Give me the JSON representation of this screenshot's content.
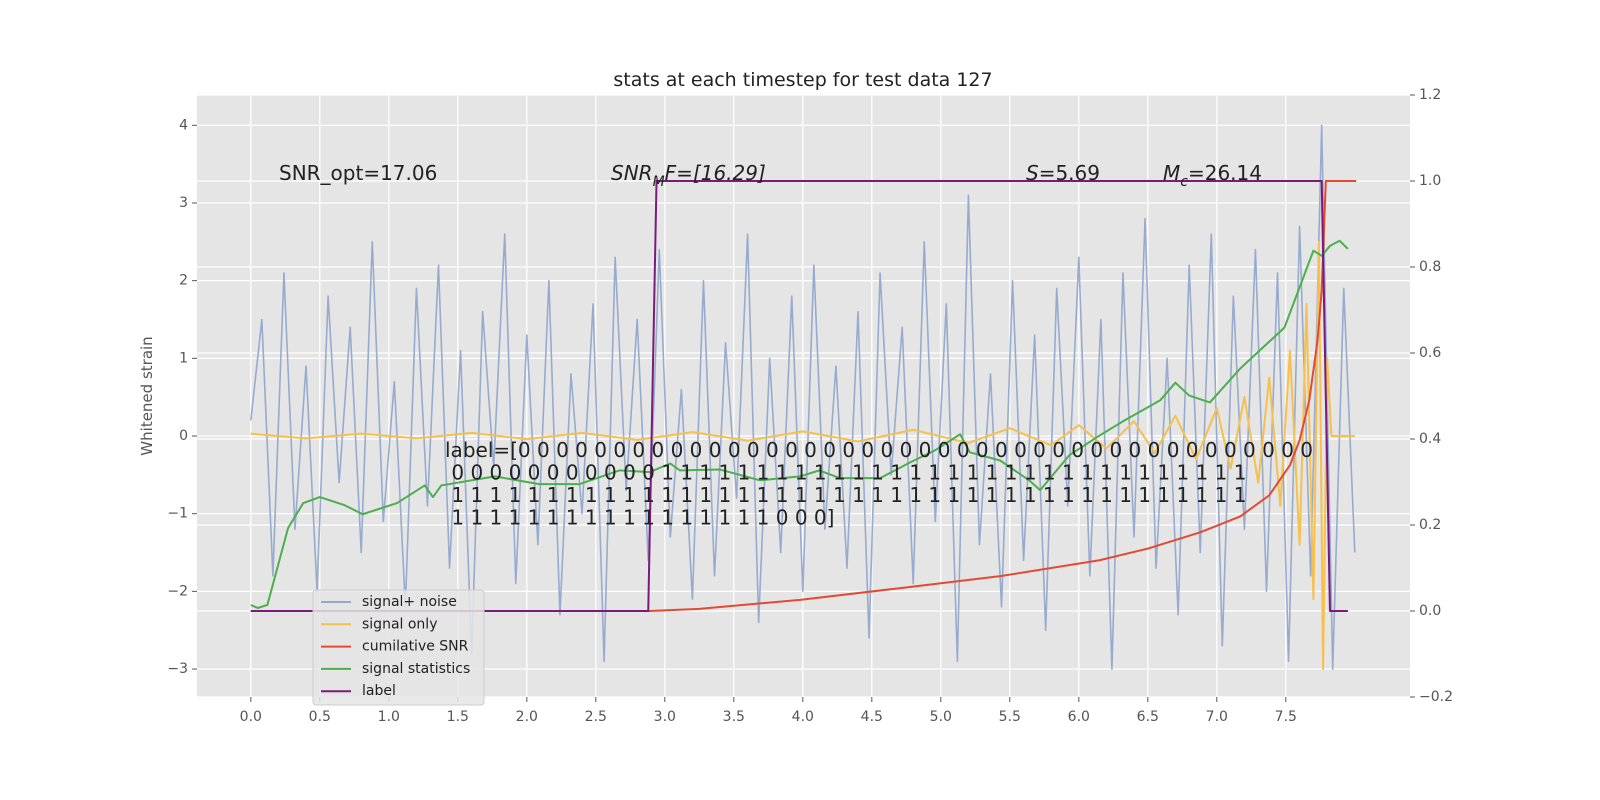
{
  "chart_data": {
    "type": "line",
    "title": "stats at each timestep for test data 127",
    "ylabel": "Whitened strain",
    "xlim": [
      -0.39,
      8.4
    ],
    "ylim": [
      -3.36,
      4.39
    ],
    "y2lim": [
      -0.2,
      1.2
    ],
    "grid": true,
    "legend": "lower left",
    "xticks": [
      {
        "value": 0,
        "label": "0.0"
      },
      {
        "value": 0.5,
        "label": "0.5"
      },
      {
        "value": 1,
        "label": "1.0"
      },
      {
        "value": 1.5,
        "label": "1.5"
      },
      {
        "value": 2,
        "label": "2.0"
      },
      {
        "value": 2.5,
        "label": "2.5"
      },
      {
        "value": 3,
        "label": "3.0"
      },
      {
        "value": 3.5,
        "label": "3.5"
      },
      {
        "value": 4,
        "label": "4.0"
      },
      {
        "value": 4.5,
        "label": "4.5"
      },
      {
        "value": 5,
        "label": "5.0"
      },
      {
        "value": 5.5,
        "label": "5.5"
      },
      {
        "value": 6,
        "label": "6.0"
      },
      {
        "value": 6.5,
        "label": "6.5"
      },
      {
        "value": 7,
        "label": "7.0"
      },
      {
        "value": 7.5,
        "label": "7.5"
      }
    ],
    "yticks": [
      {
        "value": -3,
        "label": "−3"
      },
      {
        "value": -2,
        "label": "−2"
      },
      {
        "value": -1,
        "label": "−1"
      },
      0,
      1,
      2,
      3,
      4
    ],
    "y2ticks": [
      {
        "value": -0.2,
        "label": "−0.2"
      },
      {
        "value": 0,
        "label": "0.0"
      },
      0.2,
      0.4,
      0.6,
      0.8,
      {
        "value": 1,
        "label": "1.0"
      },
      1.2
    ],
    "annotations": {
      "snr_opt": "SNR_opt=17.06",
      "snr_mf": [
        "SNR",
        "M",
        "F=[16.29]"
      ],
      "s": [
        "S",
        "=5.69"
      ],
      "mc": [
        "M",
        "c",
        "=26.14"
      ],
      "label_lines": [
        "label=[0 0 0 0 0 0 0 0 0 0 0 0 0 0 0 0 0 0 0 0 0 0 0 0 0 0 0 0 0 0 0 0 0 0 0 0 0 0 0 0 0 0",
        " 0 0 0 0 0 0 0 0 0 0 0 1 1 1 1 1 1 1 1 1 1 1 1 1 1 1 1 1 1 1 1 1 1 1 1 1 1 1 1 1 1 1",
        " 1 1 1 1 1 1 1 1 1 1 1 1 1 1 1 1 1 1 1 1 1 1 1 1 1 1 1 1 1 1 1 1 1 1 1 1 1 1 1 1 1 1",
        " 1 1 1 1 1 1 1 1 1 1 1 1 1 1 1 1 1 0 0 0]"
      ]
    },
    "series": [
      {
        "name": "signal+ noise",
        "color": "#92a8cd",
        "axis": "y",
        "x": [
          0,
          0.08,
          0.16,
          0.24,
          0.32,
          0.4,
          0.48,
          0.56,
          0.64,
          0.72,
          0.8,
          0.88,
          0.96,
          1.04,
          1.12,
          1.2,
          1.28,
          1.36,
          1.44,
          1.52,
          1.6,
          1.68,
          1.76,
          1.84,
          1.92,
          2,
          2.08,
          2.16,
          2.24,
          2.32,
          2.4,
          2.48,
          2.56,
          2.64,
          2.72,
          2.8,
          2.88,
          2.96,
          3.04,
          3.12,
          3.2,
          3.28,
          3.36,
          3.44,
          3.52,
          3.6,
          3.68,
          3.76,
          3.84,
          3.92,
          4,
          4.08,
          4.16,
          4.24,
          4.32,
          4.4,
          4.48,
          4.56,
          4.64,
          4.72,
          4.8,
          4.88,
          4.96,
          5.04,
          5.12,
          5.2,
          5.28,
          5.36,
          5.44,
          5.52,
          5.6,
          5.68,
          5.76,
          5.84,
          5.92,
          6,
          6.08,
          6.16,
          6.24,
          6.32,
          6.4,
          6.48,
          6.56,
          6.64,
          6.72,
          6.8,
          6.88,
          6.96,
          7.04,
          7.12,
          7.2,
          7.28,
          7.36,
          7.44,
          7.52,
          7.6,
          7.68,
          7.76,
          7.84,
          7.92,
          8
        ],
        "values": [
          0.2,
          1.5,
          -1.8,
          2.1,
          -1.2,
          0.9,
          -2.0,
          1.8,
          -0.6,
          1.4,
          -1.5,
          2.5,
          -1.1,
          0.7,
          -2.2,
          1.9,
          -0.9,
          2.2,
          -1.7,
          1.1,
          -2.8,
          1.6,
          -0.4,
          2.6,
          -1.9,
          1.3,
          -1.4,
          2.0,
          -2.3,
          0.8,
          -1.0,
          1.7,
          -2.9,
          2.3,
          -0.7,
          1.5,
          -1.6,
          2.4,
          -1.3,
          0.6,
          -2.1,
          2.0,
          -1.8,
          1.2,
          -0.8,
          2.6,
          -2.4,
          1.0,
          -1.5,
          1.8,
          -2.0,
          2.2,
          -1.2,
          0.9,
          -1.7,
          1.6,
          -2.6,
          2.1,
          -0.5,
          1.4,
          -1.9,
          2.5,
          -1.1,
          1.7,
          -2.9,
          3.1,
          -1.4,
          0.8,
          -2.2,
          2.0,
          -1.6,
          1.3,
          -2.5,
          1.9,
          -0.9,
          2.3,
          -1.8,
          1.5,
          -3.0,
          2.1,
          -1.3,
          2.8,
          -1.7,
          1.0,
          -2.3,
          2.2,
          -1.5,
          2.6,
          -2.7,
          1.8,
          -1.2,
          2.4,
          -2.0,
          2.1,
          -2.9,
          2.7,
          -1.8,
          4.0,
          -3.0,
          1.9,
          -1.5
        ]
      },
      {
        "name": "signal only",
        "color": "#f5c04f",
        "axis": "y",
        "x": [
          0,
          0.4,
          0.8,
          1.2,
          1.6,
          2.0,
          2.4,
          2.8,
          3.2,
          3.6,
          4.0,
          4.4,
          4.8,
          5.2,
          5.5,
          5.8,
          6.0,
          6.2,
          6.4,
          6.55,
          6.7,
          6.85,
          7.0,
          7.1,
          7.2,
          7.3,
          7.38,
          7.46,
          7.53,
          7.6,
          7.65,
          7.7,
          7.74,
          7.77,
          7.8,
          7.83,
          8.0
        ],
        "values": [
          0.03,
          -0.03,
          0.03,
          -0.03,
          0.04,
          -0.04,
          0.04,
          -0.05,
          0.05,
          -0.06,
          0.06,
          -0.07,
          0.08,
          -0.09,
          0.1,
          -0.12,
          0.14,
          -0.16,
          0.19,
          -0.22,
          0.26,
          -0.3,
          0.36,
          -0.42,
          0.5,
          -0.6,
          0.75,
          -0.9,
          1.1,
          -1.4,
          1.7,
          -2.1,
          2.5,
          -3.0,
          1.0,
          0.0,
          0.0
        ]
      },
      {
        "name": "cumilative SNR",
        "color": "#e24a33",
        "axis": "y2",
        "x": [
          0,
          2.89,
          3.25,
          3.98,
          4.7,
          5.43,
          6.15,
          6.51,
          6.88,
          7.17,
          7.38,
          7.53,
          7.6,
          7.67,
          7.73,
          7.76,
          7.79,
          8.01
        ],
        "values": [
          0,
          0,
          0.005,
          0.026,
          0.053,
          0.081,
          0.118,
          0.146,
          0.183,
          0.22,
          0.269,
          0.339,
          0.397,
          0.49,
          0.629,
          0.745,
          1.0,
          1.0
        ]
      },
      {
        "name": "signal statistics",
        "color": "#4cae4c",
        "axis": "y2",
        "x": [
          0,
          0.05,
          0.12,
          0.27,
          0.38,
          0.5,
          0.68,
          0.81,
          1.06,
          1.26,
          1.32,
          1.38,
          1.77,
          2.09,
          2.38,
          2.67,
          2.89,
          3.04,
          3.11,
          3.4,
          3.69,
          3.98,
          4.12,
          4.27,
          4.56,
          4.78,
          4.96,
          5.14,
          5.21,
          5.43,
          5.64,
          5.72,
          5.93,
          6.15,
          6.33,
          6.59,
          6.7,
          6.8,
          6.95,
          7.17,
          7.49,
          7.7,
          7.76,
          7.82,
          7.89,
          7.95
        ],
        "values": [
          0.014,
          0.007,
          0.014,
          0.193,
          0.251,
          0.265,
          0.246,
          0.225,
          0.251,
          0.292,
          0.265,
          0.292,
          0.313,
          0.295,
          0.295,
          0.327,
          0.323,
          0.343,
          0.327,
          0.329,
          0.304,
          0.313,
          0.327,
          0.309,
          0.309,
          0.346,
          0.374,
          0.411,
          0.369,
          0.35,
          0.304,
          0.281,
          0.362,
          0.408,
          0.443,
          0.49,
          0.531,
          0.501,
          0.485,
          0.564,
          0.659,
          0.838,
          0.826,
          0.849,
          0.861,
          0.842
        ]
      },
      {
        "name": "label",
        "color": "#7b1a7b",
        "axis": "y2",
        "x": [
          0,
          2.88,
          2.94,
          7.76,
          7.82,
          7.95
        ],
        "values": [
          0,
          0,
          1,
          1,
          0,
          0
        ]
      }
    ]
  }
}
